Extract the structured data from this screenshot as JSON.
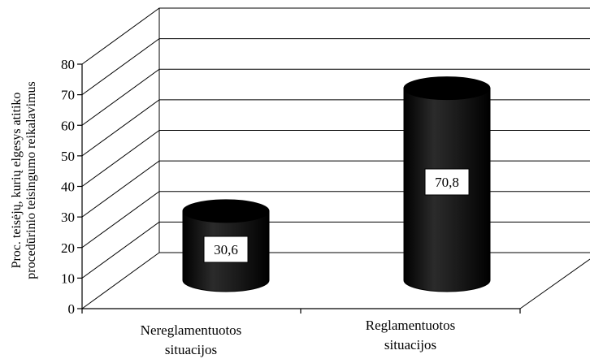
{
  "chart_data": {
    "type": "bar",
    "style": "3d-cylinder",
    "categories": [
      [
        "Nereglamentuotos",
        "situacijos"
      ],
      [
        "Reglamentuotos",
        "situacijos"
      ]
    ],
    "values": [
      30.6,
      70.8
    ],
    "data_labels": [
      "30,6",
      "70,8"
    ],
    "ylabel": [
      "Proc. teisėjų, kurių elgesys atitiko",
      "procedūrinio teisingumo reikalavimus"
    ],
    "ylim": [
      0,
      80
    ],
    "yticks": [
      0,
      10,
      20,
      30,
      40,
      50,
      60,
      70,
      80
    ],
    "grid": true,
    "legend": "none",
    "bar_color": "#1a1a1a"
  }
}
